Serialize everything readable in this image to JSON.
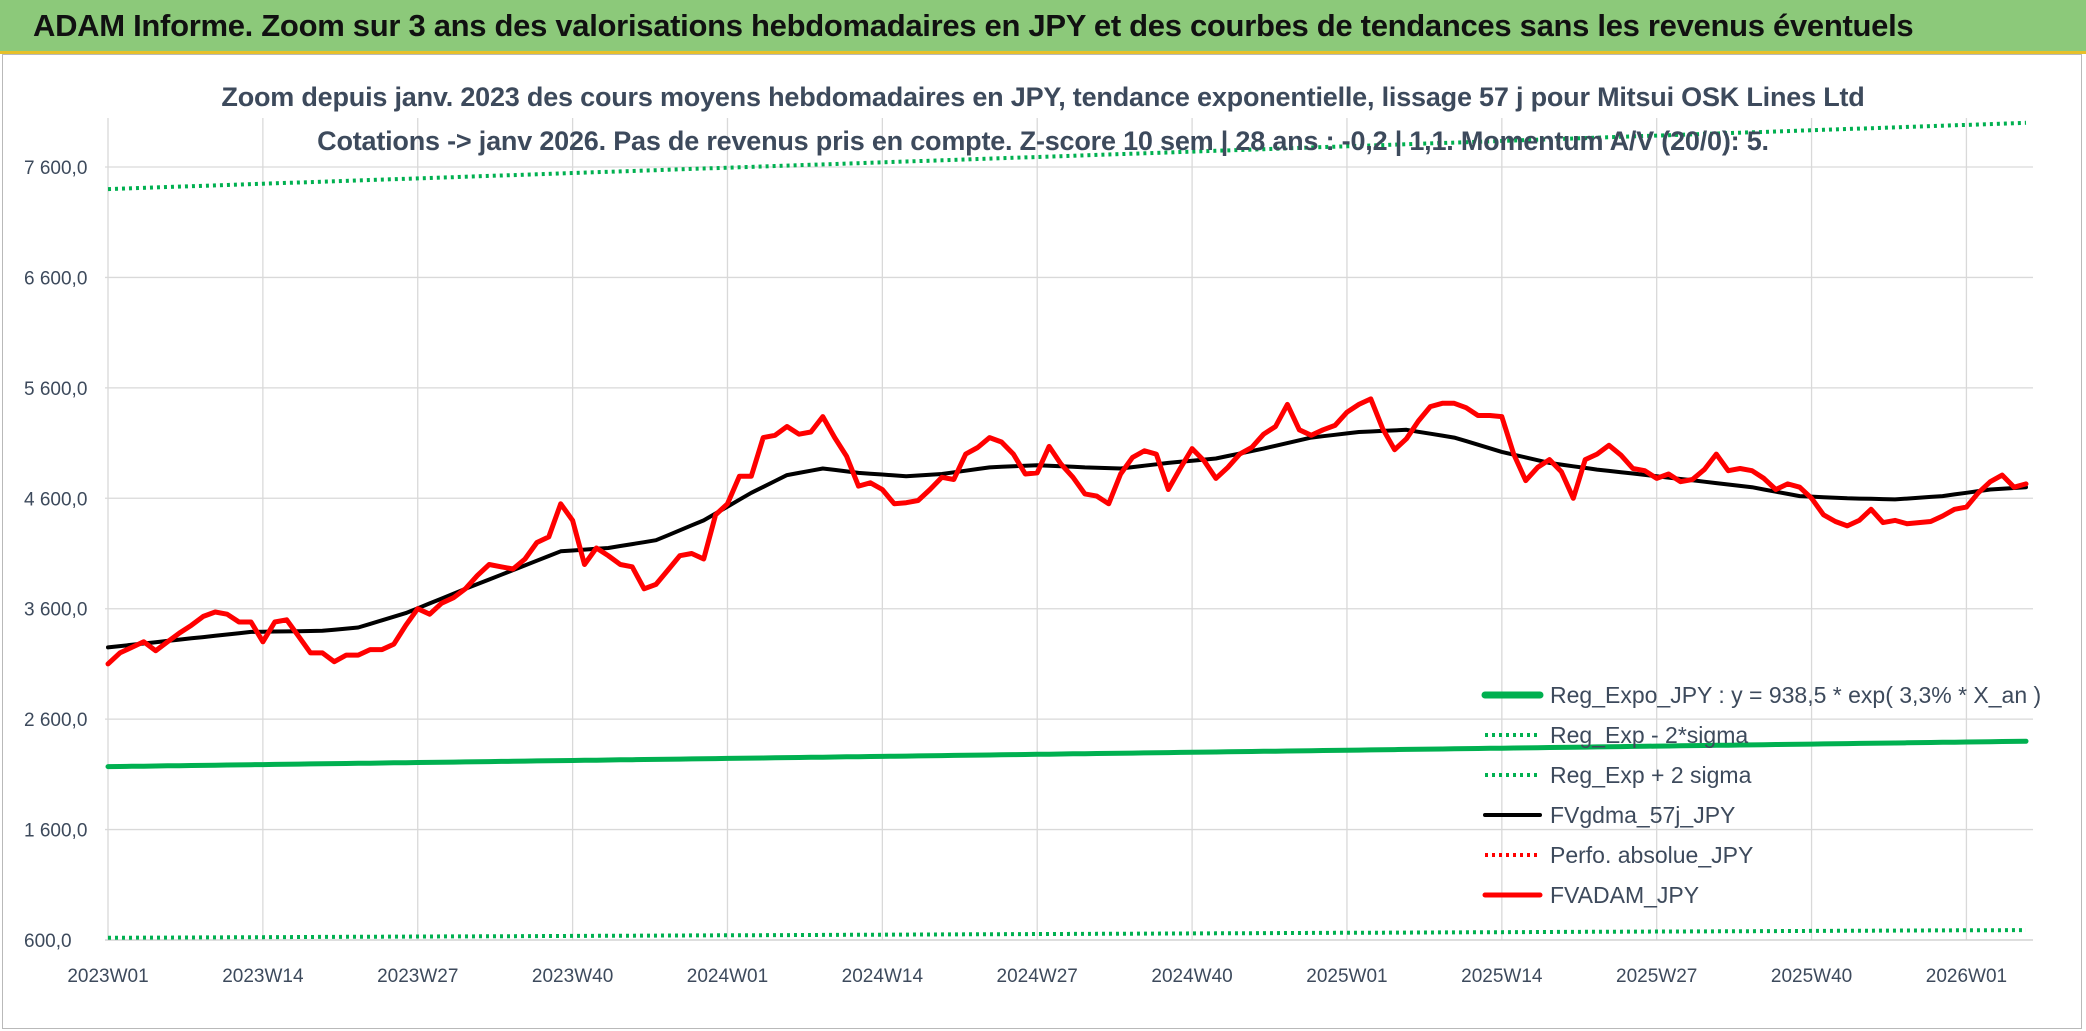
{
  "banner": {
    "title": "ADAM Informe. Zoom sur 3 ans des valorisations hebdomadaires en JPY et des courbes de tendances sans les revenus éventuels"
  },
  "chart_data": {
    "type": "line",
    "title": "Zoom depuis janv. 2023 des cours moyens hebdomadaires en JPY, tendance exponentielle, lissage 57 j pour Mitsui OSK Lines Ltd",
    "subtitle": "Cotations -> janv 2026. Pas de revenus pris en compte. Z-score 10 sem | 28 ans : -0,2 | 1,1. Momentum A/V (20/0): 5.",
    "xlabel": "",
    "ylabel": "",
    "ylim": [
      600,
      8000
    ],
    "yticks": [
      600,
      1600,
      2600,
      3600,
      4600,
      5600,
      6600,
      7600
    ],
    "ytick_labels": [
      "600,0",
      "1 600,0",
      "2 600,0",
      "3 600,0",
      "4 600,0",
      "5 600,0",
      "6 600,0",
      "7 600,0"
    ],
    "x_count": 162,
    "xtick_labels": [
      {
        "index": 0,
        "label": "2023W01"
      },
      {
        "index": 13,
        "label": "2023W14"
      },
      {
        "index": 26,
        "label": "2023W27"
      },
      {
        "index": 39,
        "label": "2023W40"
      },
      {
        "index": 52,
        "label": "2024W01"
      },
      {
        "index": 65,
        "label": "2024W14"
      },
      {
        "index": 78,
        "label": "2024W27"
      },
      {
        "index": 91,
        "label": "2024W40"
      },
      {
        "index": 104,
        "label": "2025W01"
      },
      {
        "index": 117,
        "label": "2025W14"
      },
      {
        "index": 130,
        "label": "2025W27"
      },
      {
        "index": 143,
        "label": "2025W40"
      },
      {
        "index": 156,
        "label": "2026W01"
      }
    ],
    "legend_position": "bottom-right",
    "series": [
      {
        "name": "Reg_Expo_JPY : y = 938,5 * exp( 3,3% *  X_an )",
        "color": "#00b050",
        "style": "solid-thick",
        "anchors": [
          [
            0,
            2170
          ],
          [
            161,
            2400
          ]
        ]
      },
      {
        "name": "Reg_Exp - 2*sigma",
        "color": "#00b050",
        "style": "dotted",
        "anchors": [
          [
            0,
            620
          ],
          [
            161,
            690
          ]
        ]
      },
      {
        "name": "Reg_Exp + 2 sigma",
        "color": "#00b050",
        "style": "dotted",
        "anchors": [
          [
            0,
            7400
          ],
          [
            161,
            8000
          ]
        ]
      },
      {
        "name": "FVgdma_57j_JPY",
        "color": "#000000",
        "style": "solid",
        "anchors": [
          [
            0,
            3250
          ],
          [
            6,
            3320
          ],
          [
            12,
            3390
          ],
          [
            18,
            3400
          ],
          [
            21,
            3430
          ],
          [
            25,
            3560
          ],
          [
            30,
            3780
          ],
          [
            34,
            3950
          ],
          [
            38,
            4120
          ],
          [
            42,
            4150
          ],
          [
            46,
            4220
          ],
          [
            50,
            4400
          ],
          [
            54,
            4650
          ],
          [
            57,
            4810
          ],
          [
            60,
            4870
          ],
          [
            63,
            4830
          ],
          [
            67,
            4800
          ],
          [
            70,
            4820
          ],
          [
            74,
            4880
          ],
          [
            78,
            4900
          ],
          [
            82,
            4880
          ],
          [
            85,
            4870
          ],
          [
            89,
            4920
          ],
          [
            93,
            4960
          ],
          [
            97,
            5050
          ],
          [
            101,
            5150
          ],
          [
            105,
            5200
          ],
          [
            109,
            5220
          ],
          [
            113,
            5150
          ],
          [
            117,
            5020
          ],
          [
            121,
            4920
          ],
          [
            125,
            4860
          ],
          [
            130,
            4800
          ],
          [
            134,
            4750
          ],
          [
            138,
            4700
          ],
          [
            142,
            4620
          ],
          [
            146,
            4600
          ],
          [
            150,
            4590
          ],
          [
            154,
            4620
          ],
          [
            158,
            4680
          ],
          [
            161,
            4700
          ]
        ]
      },
      {
        "name": "Perfo. absolue_JPY",
        "color": "#ff0000",
        "style": "dotted",
        "anchors": []
      },
      {
        "name": "FVADAM_JPY",
        "color": "#ff0000",
        "style": "solid-thick",
        "anchors": [
          [
            0,
            3100
          ],
          [
            1,
            3200
          ],
          [
            2,
            3250
          ],
          [
            3,
            3300
          ],
          [
            4,
            3220
          ],
          [
            5,
            3300
          ],
          [
            6,
            3380
          ],
          [
            7,
            3450
          ],
          [
            8,
            3530
          ],
          [
            9,
            3570
          ],
          [
            10,
            3550
          ],
          [
            11,
            3480
          ],
          [
            12,
            3480
          ],
          [
            13,
            3300
          ],
          [
            14,
            3480
          ],
          [
            15,
            3500
          ],
          [
            16,
            3350
          ],
          [
            17,
            3200
          ],
          [
            18,
            3200
          ],
          [
            19,
            3120
          ],
          [
            20,
            3180
          ],
          [
            21,
            3180
          ],
          [
            22,
            3230
          ],
          [
            23,
            3230
          ],
          [
            24,
            3280
          ],
          [
            25,
            3450
          ],
          [
            26,
            3600
          ],
          [
            27,
            3550
          ],
          [
            28,
            3650
          ],
          [
            29,
            3700
          ],
          [
            30,
            3780
          ],
          [
            31,
            3900
          ],
          [
            32,
            4000
          ],
          [
            33,
            3980
          ],
          [
            34,
            3960
          ],
          [
            35,
            4050
          ],
          [
            36,
            4200
          ],
          [
            37,
            4250
          ],
          [
            38,
            4550
          ],
          [
            39,
            4400
          ],
          [
            40,
            4000
          ],
          [
            41,
            4150
          ],
          [
            42,
            4080
          ],
          [
            43,
            4000
          ],
          [
            44,
            3980
          ],
          [
            45,
            3780
          ],
          [
            46,
            3820
          ],
          [
            47,
            3950
          ],
          [
            48,
            4080
          ],
          [
            49,
            4100
          ],
          [
            50,
            4050
          ],
          [
            51,
            4450
          ],
          [
            52,
            4550
          ],
          [
            53,
            4800
          ],
          [
            54,
            4800
          ],
          [
            55,
            5150
          ],
          [
            56,
            5170
          ],
          [
            57,
            5250
          ],
          [
            58,
            5180
          ],
          [
            59,
            5200
          ],
          [
            60,
            5340
          ],
          [
            61,
            5150
          ],
          [
            62,
            4980
          ],
          [
            63,
            4710
          ],
          [
            64,
            4740
          ],
          [
            65,
            4680
          ],
          [
            66,
            4550
          ],
          [
            67,
            4560
          ],
          [
            68,
            4580
          ],
          [
            69,
            4680
          ],
          [
            70,
            4790
          ],
          [
            71,
            4770
          ],
          [
            72,
            5000
          ],
          [
            73,
            5060
          ],
          [
            74,
            5150
          ],
          [
            75,
            5110
          ],
          [
            76,
            5000
          ],
          [
            77,
            4820
          ],
          [
            78,
            4830
          ],
          [
            79,
            5070
          ],
          [
            80,
            4910
          ],
          [
            81,
            4790
          ],
          [
            82,
            4640
          ],
          [
            83,
            4620
          ],
          [
            84,
            4550
          ],
          [
            85,
            4820
          ],
          [
            86,
            4970
          ],
          [
            87,
            5030
          ],
          [
            88,
            5000
          ],
          [
            89,
            4680
          ],
          [
            90,
            4870
          ],
          [
            91,
            5050
          ],
          [
            92,
            4940
          ],
          [
            93,
            4780
          ],
          [
            94,
            4880
          ],
          [
            95,
            5000
          ],
          [
            96,
            5060
          ],
          [
            97,
            5180
          ],
          [
            98,
            5250
          ],
          [
            99,
            5450
          ],
          [
            100,
            5220
          ],
          [
            101,
            5170
          ],
          [
            102,
            5220
          ],
          [
            103,
            5260
          ],
          [
            104,
            5380
          ],
          [
            105,
            5450
          ],
          [
            106,
            5500
          ],
          [
            107,
            5230
          ],
          [
            108,
            5040
          ],
          [
            109,
            5140
          ],
          [
            110,
            5300
          ],
          [
            111,
            5430
          ],
          [
            112,
            5460
          ],
          [
            113,
            5460
          ],
          [
            114,
            5420
          ],
          [
            115,
            5350
          ],
          [
            116,
            5350
          ],
          [
            117,
            5340
          ],
          [
            118,
            5000
          ],
          [
            119,
            4760
          ],
          [
            120,
            4880
          ],
          [
            121,
            4950
          ],
          [
            122,
            4840
          ],
          [
            123,
            4600
          ],
          [
            124,
            4950
          ],
          [
            125,
            5000
          ],
          [
            126,
            5080
          ],
          [
            127,
            4990
          ],
          [
            128,
            4870
          ],
          [
            129,
            4850
          ],
          [
            130,
            4780
          ],
          [
            131,
            4820
          ],
          [
            132,
            4750
          ],
          [
            133,
            4770
          ],
          [
            134,
            4860
          ],
          [
            135,
            5000
          ],
          [
            136,
            4850
          ],
          [
            137,
            4870
          ],
          [
            138,
            4850
          ],
          [
            139,
            4780
          ],
          [
            140,
            4680
          ],
          [
            141,
            4730
          ],
          [
            142,
            4700
          ],
          [
            143,
            4600
          ],
          [
            144,
            4450
          ],
          [
            145,
            4390
          ],
          [
            146,
            4350
          ],
          [
            147,
            4400
          ],
          [
            148,
            4500
          ],
          [
            149,
            4380
          ],
          [
            150,
            4400
          ],
          [
            151,
            4370
          ],
          [
            152,
            4380
          ],
          [
            153,
            4390
          ],
          [
            154,
            4440
          ],
          [
            155,
            4500
          ],
          [
            156,
            4520
          ],
          [
            157,
            4650
          ],
          [
            158,
            4750
          ],
          [
            159,
            4810
          ],
          [
            160,
            4700
          ],
          [
            161,
            4730
          ]
        ]
      }
    ]
  }
}
